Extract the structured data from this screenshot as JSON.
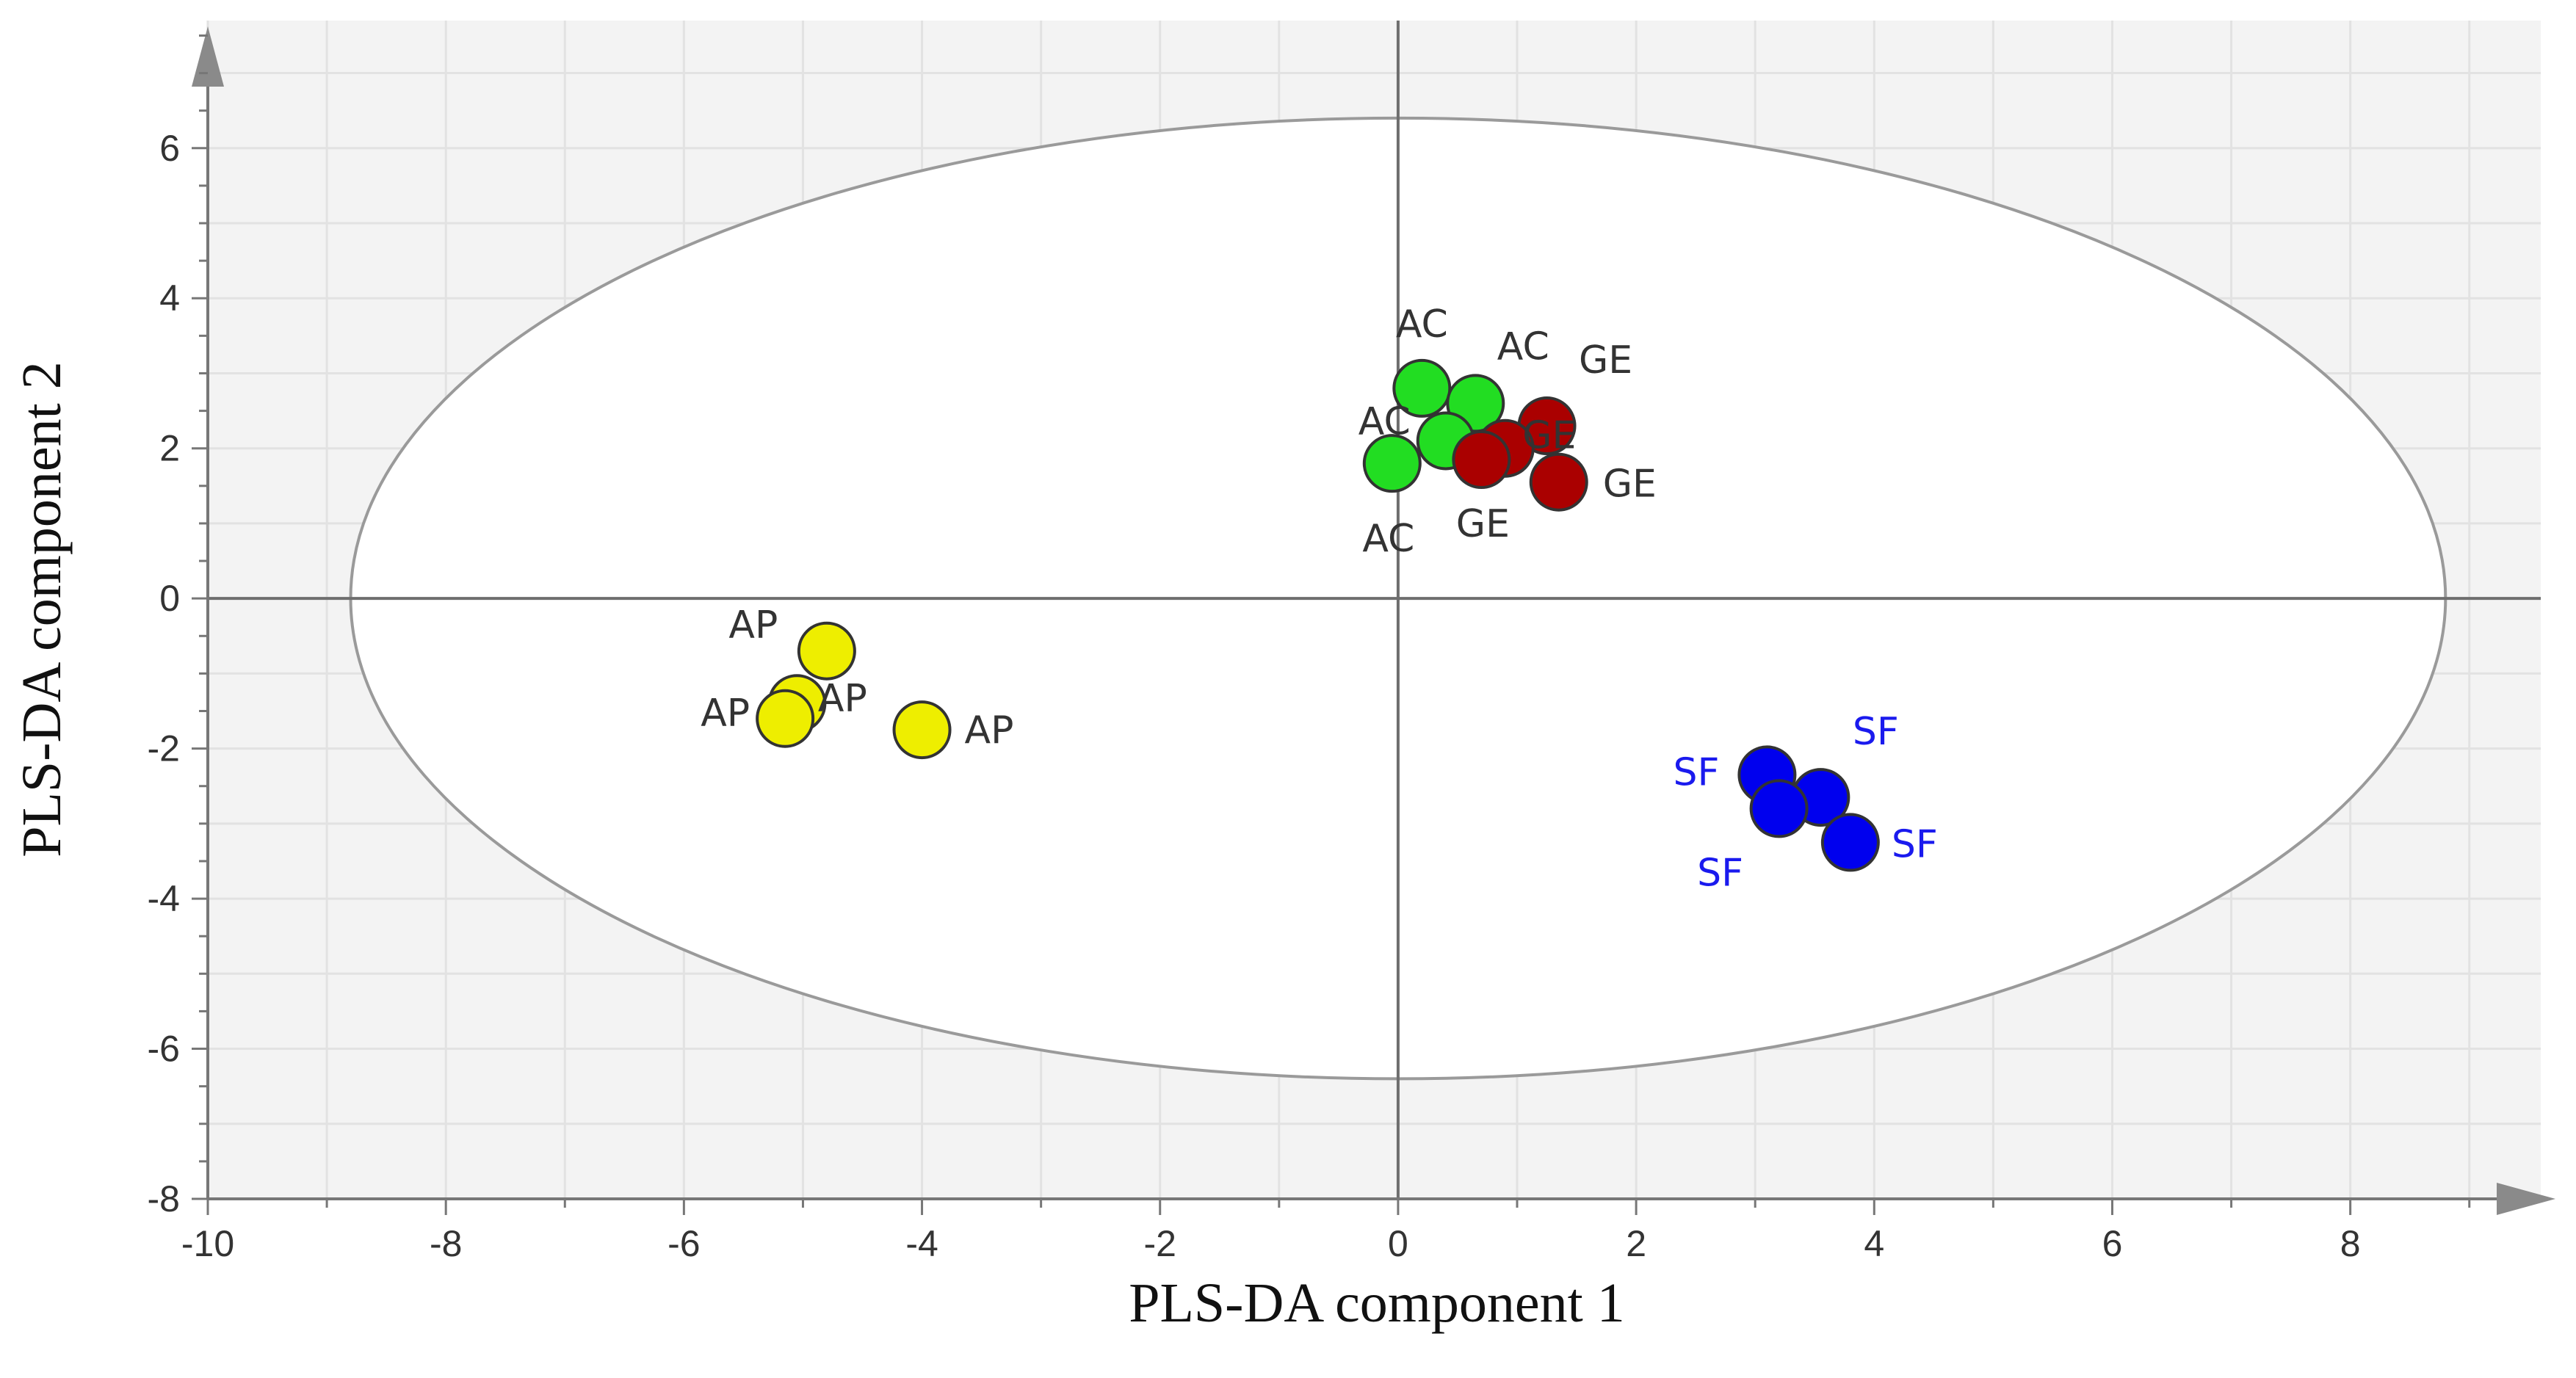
{
  "chart_data": {
    "type": "scatter",
    "title": "",
    "xlabel": "PLS-DA component 1",
    "ylabel": "PLS-DA component 2",
    "xlim": [
      -10,
      9.6
    ],
    "ylim": [
      -8,
      7.7
    ],
    "xticks": [
      -10,
      -8,
      -6,
      -4,
      -2,
      0,
      2,
      4,
      6,
      8
    ],
    "yticks": [
      -8,
      -6,
      -4,
      -2,
      0,
      2,
      4,
      6
    ],
    "xtick_labels": [
      "-10",
      "-8",
      "-6",
      "-4",
      "-2",
      "0",
      "2",
      "4",
      "6",
      "8"
    ],
    "ytick_labels": [
      "-8",
      "-6",
      "-4",
      "-2",
      "0",
      "2",
      "4",
      "6"
    ],
    "grid": true,
    "confidence_ellipse": {
      "cx": 0,
      "cy": 0,
      "rx": 8.8,
      "ry": 6.4
    },
    "series": [
      {
        "name": "AC",
        "color": "#22dd22",
        "label_color": "#333333",
        "points": [
          {
            "x": 0.2,
            "y": 2.8,
            "label": "AC"
          },
          {
            "x": 0.65,
            "y": 2.6,
            "label": "AC"
          },
          {
            "x": 0.4,
            "y": 2.1,
            "label": "AC"
          },
          {
            "x": -0.05,
            "y": 1.8,
            "label": "AC"
          }
        ]
      },
      {
        "name": "GE",
        "color": "#aa0000",
        "label_color": "#333333",
        "points": [
          {
            "x": 1.25,
            "y": 2.3,
            "label": "GE"
          },
          {
            "x": 0.9,
            "y": 2.0,
            "label": "GE"
          },
          {
            "x": 0.7,
            "y": 1.85,
            "label": "GE"
          },
          {
            "x": 1.35,
            "y": 1.55,
            "label": "GE"
          }
        ]
      },
      {
        "name": "AP",
        "color": "#eeee00",
        "label_color": "#333333",
        "points": [
          {
            "x": -4.8,
            "y": -0.7,
            "label": "AP"
          },
          {
            "x": -5.05,
            "y": -1.4,
            "label": "AP"
          },
          {
            "x": -5.15,
            "y": -1.6,
            "label": "AP"
          },
          {
            "x": -4.0,
            "y": -1.75,
            "label": "AP"
          }
        ]
      },
      {
        "name": "SF",
        "color": "#0000ee",
        "label_color": "#1a1aee",
        "points": [
          {
            "x": 3.1,
            "y": -2.35,
            "label": "SF"
          },
          {
            "x": 3.55,
            "y": -2.65,
            "label": "SF"
          },
          {
            "x": 3.2,
            "y": -2.8,
            "label": "SF"
          },
          {
            "x": 3.8,
            "y": -3.25,
            "label": "SF"
          }
        ]
      }
    ]
  }
}
